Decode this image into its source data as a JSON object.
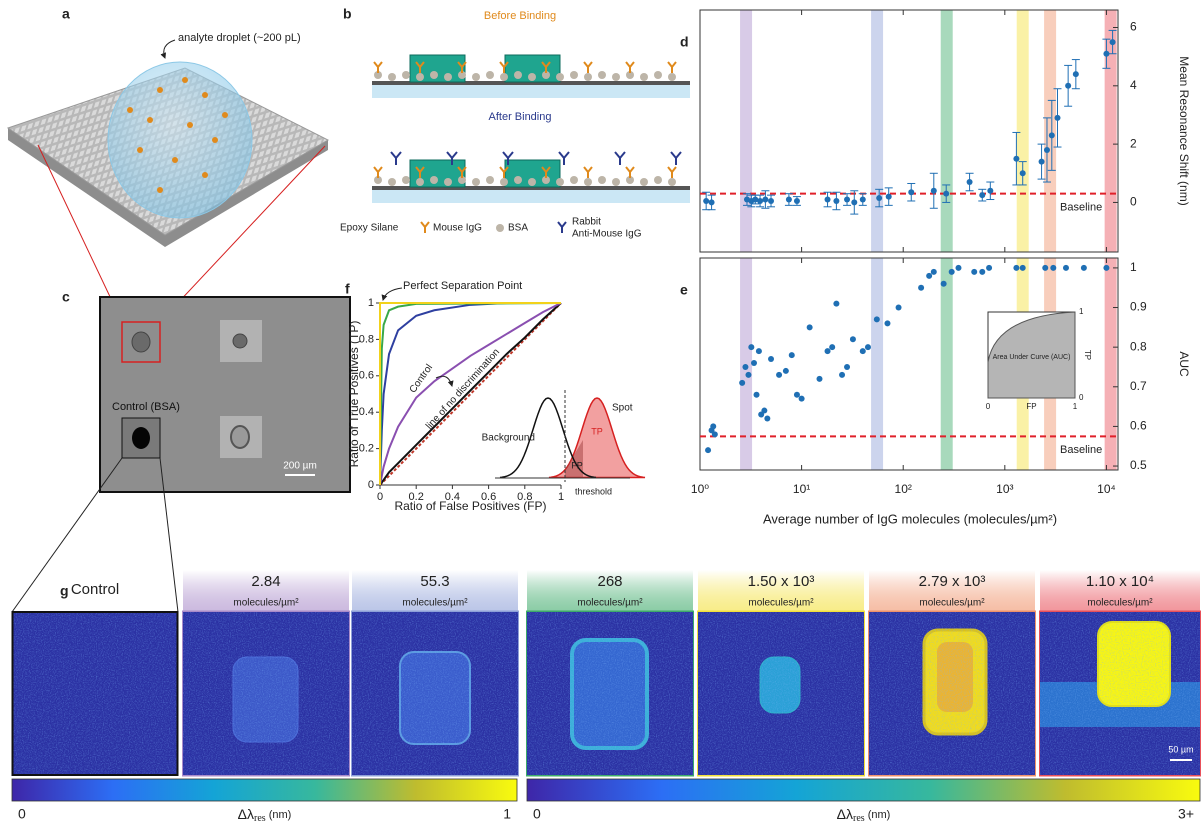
{
  "a": {
    "label": "a",
    "annotation": "analyte droplet (~200 pL)"
  },
  "b": {
    "label": "b",
    "before": "Before Binding",
    "after": "After Binding",
    "legend": [
      "Epoxy Silane",
      "Mouse IgG",
      "BSA"
    ],
    "legend_multiline": [
      "Rabbit",
      "Anti-Mouse IgG"
    ]
  },
  "c": {
    "label": "c",
    "control": "Control (BSA)",
    "scale": "200 µm"
  },
  "chart_data": [
    {
      "type": "errorbar",
      "label": "d",
      "ylabel": "Mean Resonance Shift (nm)",
      "xscale": "log",
      "xlim": [
        1,
        13000
      ],
      "ylim": [
        -1.7,
        6.6
      ],
      "xticks": [
        1,
        10,
        100,
        1000,
        10000
      ],
      "yticks": [
        0,
        2,
        4,
        6
      ],
      "baseline": 0.3,
      "baseline_label": "Baseline",
      "color": "#1f6fb4",
      "x": [
        1.15,
        1.3,
        2.9,
        3.2,
        3.5,
        3.9,
        4.4,
        5,
        7.5,
        9,
        18,
        22,
        28,
        33,
        40,
        58,
        72,
        120,
        200,
        265,
        450,
        600,
        720,
        1300,
        1500,
        2300,
        2600,
        2900,
        3300,
        4200,
        5000,
        10000,
        11500
      ],
      "values": [
        0.05,
        0.0,
        0.1,
        0.05,
        0.1,
        0.05,
        0.1,
        0.05,
        0.1,
        0.05,
        0.1,
        0.05,
        0.1,
        0.0,
        0.1,
        0.15,
        0.2,
        0.35,
        0.4,
        0.3,
        0.7,
        0.25,
        0.4,
        1.5,
        1.0,
        1.4,
        1.8,
        2.3,
        2.9,
        4.0,
        4.4,
        5.1,
        5.5
      ],
      "errors": [
        0.3,
        0.25,
        0.2,
        0.2,
        0.15,
        0.2,
        0.3,
        0.2,
        0.2,
        0.15,
        0.25,
        0.3,
        0.2,
        0.4,
        0.2,
        0.3,
        0.3,
        0.3,
        0.6,
        0.3,
        0.3,
        0.2,
        0.3,
        0.9,
        0.4,
        0.6,
        1.1,
        1.2,
        1.0,
        0.7,
        0.5,
        0.5,
        0.4
      ]
    },
    {
      "type": "scatter",
      "label": "e",
      "ylabel": "AUC",
      "xlabel": "Average number of IgG molecules (molecules/µm²)",
      "xscale": "log",
      "xlim": [
        1,
        13000
      ],
      "ylim": [
        0.49,
        1.025
      ],
      "xticks": [
        {
          "value": 1,
          "label": "10⁰"
        },
        {
          "value": 10,
          "label": "10¹"
        },
        {
          "value": 100,
          "label": "10²"
        },
        {
          "value": 1000,
          "label": "10³"
        },
        {
          "value": 10000,
          "label": "10⁴"
        }
      ],
      "yticks": [
        0.5,
        0.6,
        0.7,
        0.8,
        0.9,
        1
      ],
      "baseline": 0.575,
      "baseline_label": "Baseline",
      "color": "#1f6fb4",
      "x": [
        1.2,
        1.3,
        1.35,
        1.4,
        2.6,
        2.8,
        3,
        3.2,
        3.4,
        3.6,
        3.8,
        4,
        4.3,
        4.6,
        5,
        6,
        7,
        8,
        9,
        10,
        12,
        15,
        18,
        20,
        22,
        25,
        28,
        32,
        40,
        45,
        55,
        70,
        90,
        150,
        180,
        200,
        250,
        300,
        350,
        500,
        600,
        700,
        1300,
        1500,
        2500,
        3000,
        4000,
        6000,
        10000
      ],
      "values": [
        0.54,
        0.59,
        0.6,
        0.58,
        0.71,
        0.75,
        0.73,
        0.8,
        0.76,
        0.68,
        0.79,
        0.63,
        0.64,
        0.62,
        0.77,
        0.73,
        0.74,
        0.78,
        0.68,
        0.67,
        0.85,
        0.72,
        0.79,
        0.8,
        0.91,
        0.73,
        0.75,
        0.82,
        0.79,
        0.8,
        0.87,
        0.86,
        0.9,
        0.95,
        0.98,
        0.99,
        0.96,
        0.99,
        1,
        0.99,
        0.99,
        1,
        1,
        1,
        1,
        1,
        1,
        1,
        1
      ],
      "inset": {
        "title": "Area Under Curve (AUC)",
        "xlabel": "FP",
        "ylabel": "TP",
        "xticks": [
          0,
          1
        ],
        "yticks": [
          0,
          1
        ]
      }
    },
    {
      "type": "line",
      "label": "f",
      "xlabel": "Ratio of False Positives (FP)",
      "ylabel": "Ratio of True Positives (TP)",
      "xlim": [
        0,
        1
      ],
      "ylim": [
        0,
        1
      ],
      "xticks": [
        0,
        0.2,
        0.4,
        0.6,
        0.8,
        1
      ],
      "yticks": [
        0,
        0.2,
        0.4,
        0.6,
        0.8,
        1
      ],
      "annotation": "Perfect Separation Point",
      "inset": {
        "background": "Background",
        "spot": "Spot",
        "tp": "TP",
        "fp": "FP",
        "threshold": "threshold"
      },
      "series": [
        {
          "name": "line of no discrimination",
          "color": "#c0392b",
          "dashed": true,
          "x": [
            0,
            1
          ],
          "values": [
            0,
            1
          ]
        },
        {
          "name": "Control",
          "color": "#111111",
          "x": [
            0,
            0.05,
            0.1,
            0.2,
            0.3,
            0.4,
            0.5,
            0.6,
            0.7,
            0.8,
            0.9,
            1
          ],
          "values": [
            0,
            0.07,
            0.12,
            0.22,
            0.32,
            0.42,
            0.52,
            0.62,
            0.72,
            0.81,
            0.91,
            1
          ]
        },
        {
          "color": "#8a4fb0",
          "x": [
            0,
            0.02,
            0.05,
            0.1,
            0.2,
            0.3,
            0.4,
            0.5,
            0.6,
            0.7,
            0.8,
            0.9,
            1
          ],
          "values": [
            0,
            0.1,
            0.2,
            0.32,
            0.48,
            0.57,
            0.64,
            0.71,
            0.77,
            0.83,
            0.89,
            0.95,
            1
          ]
        },
        {
          "color": "#2e3fa0",
          "x": [
            0,
            0.01,
            0.02,
            0.05,
            0.1,
            0.2,
            0.3,
            0.5,
            0.7,
            1
          ],
          "values": [
            0,
            0.3,
            0.5,
            0.72,
            0.85,
            0.93,
            0.96,
            0.99,
            1,
            1
          ]
        },
        {
          "color": "#3aa84a",
          "x": [
            0,
            0.01,
            0.02,
            0.05,
            0.1,
            0.2,
            1
          ],
          "values": [
            0,
            0.75,
            0.88,
            0.96,
            0.98,
            0.995,
            1
          ]
        },
        {
          "color": "#f2d21b",
          "x": [
            0,
            0,
            1
          ],
          "values": [
            0,
            1,
            1
          ]
        }
      ]
    }
  ],
  "g": {
    "label": "g",
    "unit": "molecules/µm²",
    "scale": "50 µm",
    "panels": [
      {
        "title": "Control"
      },
      {
        "title": "2.84",
        "value": 2.84,
        "color": "#a98bc9"
      },
      {
        "title": "55.3",
        "value": 55.3,
        "color": "#8ea0d8"
      },
      {
        "title": "268",
        "value": 268,
        "color": "#3daa6a"
      },
      {
        "title": "1.50 x 10³",
        "value": 1500,
        "color": "#f3e03a"
      },
      {
        "title": "2.79 x 10³",
        "value": 2790,
        "color": "#f0926a"
      },
      {
        "title": "1.10 x 10⁴",
        "value": 11000,
        "color": "#e8505a"
      }
    ],
    "colorbars": [
      {
        "min": 0,
        "max": 1,
        "symbol": "Δλ",
        "subscript": "res",
        "unit": "(nm)"
      },
      {
        "min": 0,
        "max": {
          "value": 3,
          "label": "3+"
        },
        "symbol": "Δλ",
        "subscript": "res",
        "unit": "(nm)"
      }
    ]
  }
}
